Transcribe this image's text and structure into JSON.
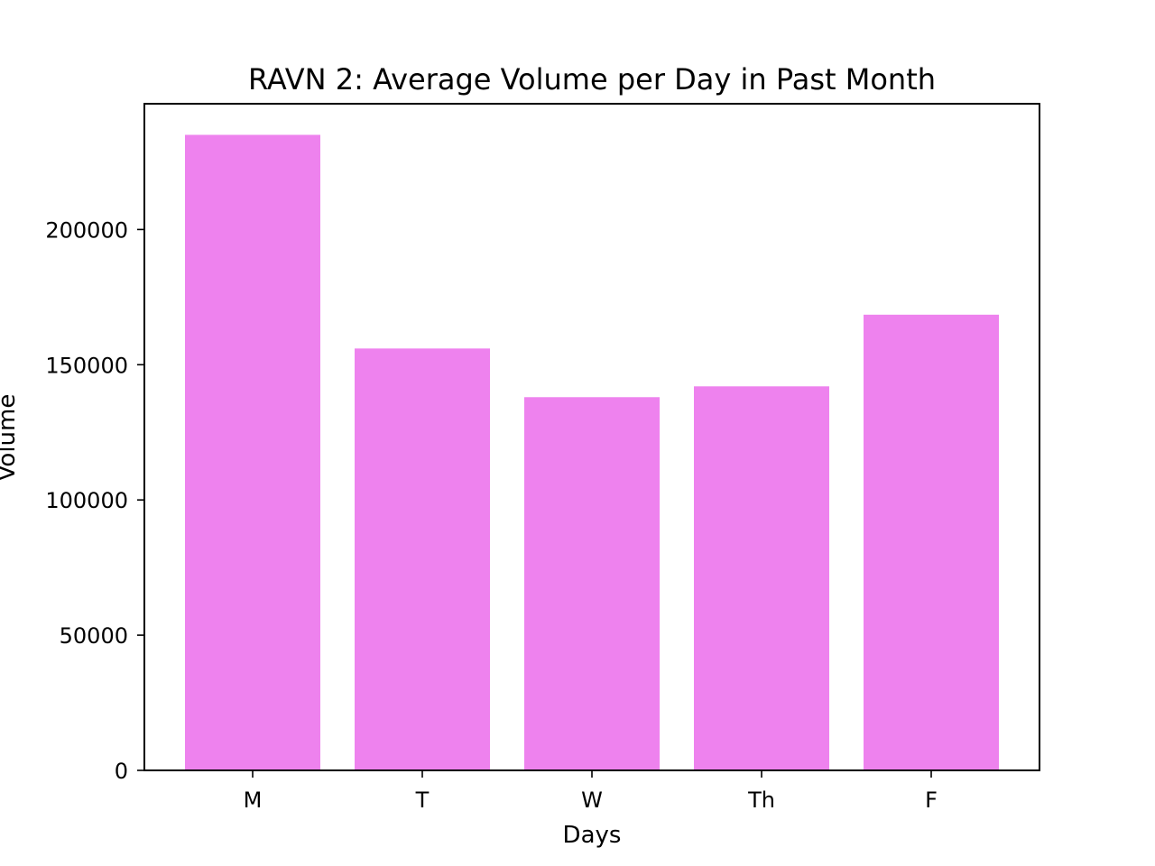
{
  "chart_data": {
    "type": "bar",
    "title": "RAVN 2: Average Volume per Day in Past Month",
    "xlabel": "Days",
    "ylabel": "Volume",
    "categories": [
      "M",
      "T",
      "W",
      "Th",
      "F"
    ],
    "values": [
      235000,
      156000,
      138000,
      142000,
      168500
    ],
    "ylim": [
      0,
      246500
    ],
    "yticks": [
      0,
      50000,
      100000,
      150000,
      200000
    ],
    "ytick_labels": [
      "0",
      "50000",
      "100000",
      "150000",
      "200000"
    ],
    "bar_color": "#ee82ee",
    "grid": false,
    "legend": "none"
  }
}
